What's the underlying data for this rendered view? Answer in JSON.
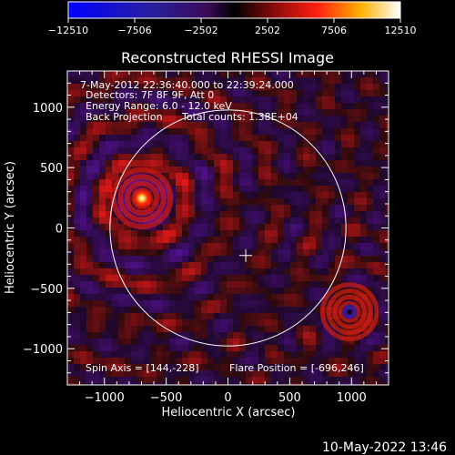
{
  "chart_data": {
    "type": "heatmap",
    "title": "Reconstructed RHESSI Image",
    "xlabel": "Heliocentric X (arcsec)",
    "ylabel": "Heliocentric Y (arcsec)",
    "xlim": [
      -1300,
      1300
    ],
    "ylim": [
      -1300,
      1300
    ],
    "xticks": [
      -1000,
      -500,
      0,
      500,
      1000
    ],
    "yticks": [
      -1000,
      -500,
      0,
      500,
      1000
    ],
    "colorbar": {
      "min": -12510,
      "max": 12510,
      "ticks": [
        -12510,
        -7506,
        -2502,
        2502,
        7506,
        12510
      ],
      "tick_labels": [
        "−12510",
        "−7506",
        "−2502",
        "2502",
        "7506",
        "12510"
      ]
    },
    "annotations": {
      "time_range": "7-May-2012 22:36:40.000 to 22:39:24.000",
      "detectors": "Detectors: 7F 8F 9F, Att 0",
      "energy_range": "Energy Range: 6.0 - 12.0 keV",
      "method": "Back Projection",
      "total_counts": "Total counts: 1.38E+04",
      "spin_axis": "Spin Axis = [144,-228]",
      "flare_position": "Flare Position = [-696,246]"
    },
    "solar_limb": {
      "center": [
        0,
        0
      ],
      "radius_arcsec": 955
    },
    "spin_axis_marker": [
      144,
      -228
    ],
    "sources": [
      {
        "x": -696,
        "y": 246,
        "peak": 12510
      },
      {
        "x": 985,
        "y": -695,
        "peak": -9000
      }
    ]
  },
  "footer": {
    "timestamp": "10-May-2022 13:46"
  }
}
